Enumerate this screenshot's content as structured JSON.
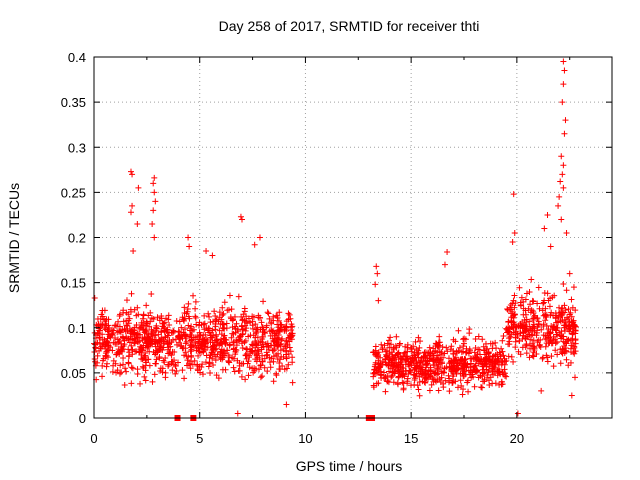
{
  "chart_data": {
    "type": "scatter",
    "title": "Day 258 of 2017, SRMTID for receiver thti",
    "xlabel": "GPS time / hours",
    "ylabel": "SRMTID / TECUs",
    "xlim": [
      0,
      24.5
    ],
    "ylim": [
      0,
      0.4
    ],
    "xticks": [
      0,
      5,
      10,
      15,
      20
    ],
    "xtick_labels": [
      "0",
      "5",
      "10",
      "15",
      "20"
    ],
    "yticks": [
      0,
      0.05,
      0.1,
      0.15,
      0.2,
      0.25,
      0.3,
      0.35,
      0.4
    ],
    "ytick_labels": [
      "0",
      "0.05",
      "0.1",
      "0.15",
      "0.2",
      "0.25",
      "0.3",
      "0.35",
      "0.4"
    ],
    "grid": true,
    "marker": "plus",
    "color": "#ff0000",
    "zero_markers": [
      {
        "x": 3.95,
        "y": 0
      },
      {
        "x": 4.7,
        "y": 0
      },
      {
        "x": 13.0,
        "y": 0
      },
      {
        "x": 13.15,
        "y": 0
      }
    ],
    "segments": [
      {
        "x_start": 0.0,
        "x_end": 9.4,
        "y_min": 0.02,
        "y_max": 0.18,
        "center": 0.085
      },
      {
        "x_start": 13.2,
        "x_end": 19.5,
        "y_min": 0.02,
        "y_max": 0.14,
        "center": 0.06
      },
      {
        "x_start": 19.5,
        "x_end": 22.8,
        "y_min": 0.04,
        "y_max": 0.2,
        "center": 0.1
      }
    ],
    "highlight_points": [
      {
        "x": 1.75,
        "y": 0.273
      },
      {
        "x": 1.8,
        "y": 0.27
      },
      {
        "x": 2.1,
        "y": 0.255
      },
      {
        "x": 1.8,
        "y": 0.235
      },
      {
        "x": 1.75,
        "y": 0.228
      },
      {
        "x": 2.05,
        "y": 0.215
      },
      {
        "x": 1.85,
        "y": 0.185
      },
      {
        "x": 2.85,
        "y": 0.266
      },
      {
        "x": 2.8,
        "y": 0.26
      },
      {
        "x": 2.85,
        "y": 0.25
      },
      {
        "x": 2.9,
        "y": 0.24
      },
      {
        "x": 2.8,
        "y": 0.23
      },
      {
        "x": 2.75,
        "y": 0.215
      },
      {
        "x": 2.85,
        "y": 0.2
      },
      {
        "x": 4.45,
        "y": 0.2
      },
      {
        "x": 4.5,
        "y": 0.19
      },
      {
        "x": 5.6,
        "y": 0.18
      },
      {
        "x": 5.3,
        "y": 0.185
      },
      {
        "x": 6.95,
        "y": 0.223
      },
      {
        "x": 7.0,
        "y": 0.22
      },
      {
        "x": 7.6,
        "y": 0.192
      },
      {
        "x": 7.85,
        "y": 0.2
      },
      {
        "x": 6.8,
        "y": 0.005
      },
      {
        "x": 9.1,
        "y": 0.015
      },
      {
        "x": 13.35,
        "y": 0.168
      },
      {
        "x": 13.4,
        "y": 0.16
      },
      {
        "x": 13.3,
        "y": 0.148
      },
      {
        "x": 13.45,
        "y": 0.13
      },
      {
        "x": 16.7,
        "y": 0.184
      },
      {
        "x": 16.6,
        "y": 0.17
      },
      {
        "x": 19.85,
        "y": 0.248
      },
      {
        "x": 19.9,
        "y": 0.205
      },
      {
        "x": 19.8,
        "y": 0.195
      },
      {
        "x": 20.05,
        "y": 0.005
      },
      {
        "x": 21.3,
        "y": 0.21
      },
      {
        "x": 21.45,
        "y": 0.225
      },
      {
        "x": 22.2,
        "y": 0.395
      },
      {
        "x": 22.25,
        "y": 0.385
      },
      {
        "x": 22.2,
        "y": 0.37
      },
      {
        "x": 22.15,
        "y": 0.35
      },
      {
        "x": 22.3,
        "y": 0.33
      },
      {
        "x": 22.25,
        "y": 0.315
      },
      {
        "x": 22.1,
        "y": 0.29
      },
      {
        "x": 22.2,
        "y": 0.28
      },
      {
        "x": 22.15,
        "y": 0.27
      },
      {
        "x": 22.05,
        "y": 0.262
      },
      {
        "x": 22.2,
        "y": 0.255
      },
      {
        "x": 22.0,
        "y": 0.245
      },
      {
        "x": 21.95,
        "y": 0.235
      },
      {
        "x": 22.1,
        "y": 0.22
      },
      {
        "x": 22.35,
        "y": 0.205
      },
      {
        "x": 21.6,
        "y": 0.19
      },
      {
        "x": 22.5,
        "y": 0.16
      },
      {
        "x": 22.7,
        "y": 0.145
      },
      {
        "x": 22.75,
        "y": 0.045
      },
      {
        "x": 22.6,
        "y": 0.025
      },
      {
        "x": 21.15,
        "y": 0.03
      }
    ]
  }
}
